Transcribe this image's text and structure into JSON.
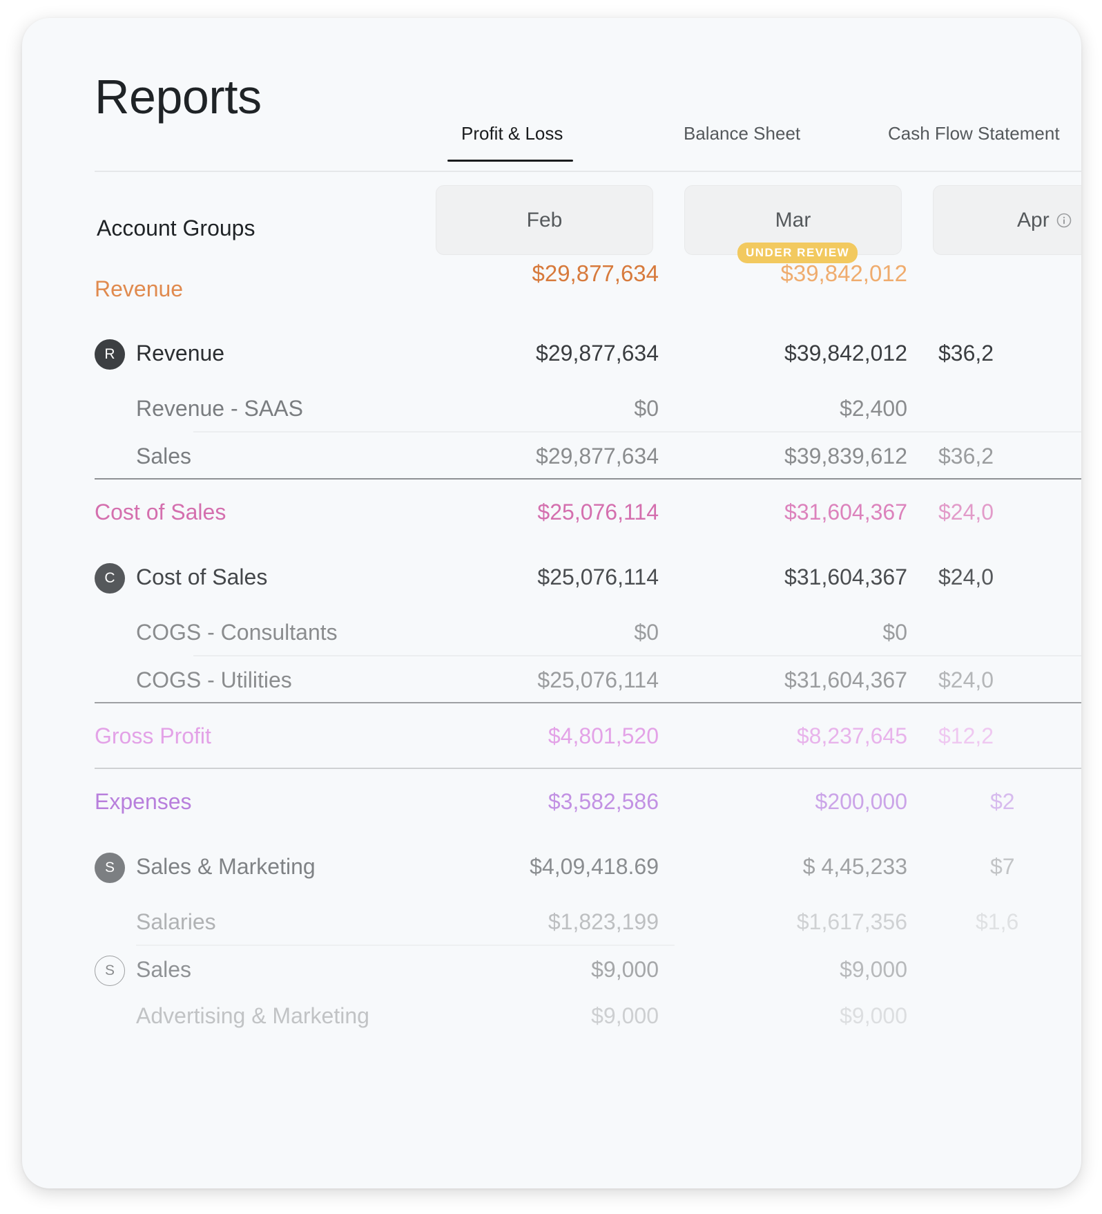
{
  "page": {
    "title": "Reports"
  },
  "tabs": [
    {
      "label": "Profit & Loss",
      "active": true
    },
    {
      "label": "Balance Sheet",
      "active": false
    },
    {
      "label": "Cash Flow Statement",
      "active": false
    }
  ],
  "table": {
    "label_header": "Account Groups",
    "months": [
      "Feb",
      "Mar",
      "Apr"
    ],
    "mar_badge": "UNDER REVIEW",
    "totals_row": [
      "$29,877,634",
      "$39,842,012"
    ],
    "sections": {
      "revenue": {
        "label": "Revenue",
        "group": {
          "initial": "R",
          "label": "Revenue",
          "values": [
            "$29,877,634",
            "$39,842,012",
            "$36,2"
          ]
        },
        "items": [
          {
            "label": "Revenue - SAAS",
            "values": [
              "$0",
              "$2,400",
              ""
            ]
          },
          {
            "label": "Sales",
            "values": [
              "$29,877,634",
              "$39,839,612",
              "$36,2"
            ]
          }
        ]
      },
      "cost_of_sales": {
        "label": "Cost of Sales",
        "values": [
          "$25,076,114",
          "$31,604,367",
          "$24,0"
        ],
        "group": {
          "initial": "C",
          "label": "Cost of Sales",
          "values": [
            "$25,076,114",
            "$31,604,367",
            "$24,0"
          ]
        },
        "items": [
          {
            "label": "COGS - Consultants",
            "values": [
              "$0",
              "$0",
              ""
            ]
          },
          {
            "label": "COGS - Utilities",
            "values": [
              "$25,076,114",
              "$31,604,367",
              "$24,0"
            ]
          }
        ]
      },
      "gross_profit": {
        "label": "Gross Profit",
        "values": [
          "$4,801,520",
          "$8,237,645",
          "$12,2"
        ]
      },
      "expenses": {
        "label": "Expenses",
        "values": [
          "$3,582,586",
          "$200,000",
          "$2"
        ],
        "group": {
          "initial": "S",
          "label": "Sales & Marketing",
          "values": [
            "$4,09,418.69",
            "$ 4,45,233",
            "$7"
          ]
        },
        "items": [
          {
            "label": "Salaries",
            "values": [
              "$1,823,199",
              "$1,617,356",
              "$1,6"
            ]
          }
        ],
        "subgroup": {
          "initial": "S",
          "label": "Sales",
          "values": [
            "$9,000",
            "$9,000",
            ""
          ]
        },
        "subitems": [
          {
            "label": "Advertising & Marketing",
            "values": [
              "$9,000",
              "$9,000",
              ""
            ]
          }
        ]
      }
    }
  },
  "colors": {
    "revenue_accent": "#e08a4e",
    "cost_accent": "#d46fae",
    "gross_accent": "#e3a2e7",
    "expenses_accent": "#b87fdc",
    "badge": "#f2c95f"
  }
}
